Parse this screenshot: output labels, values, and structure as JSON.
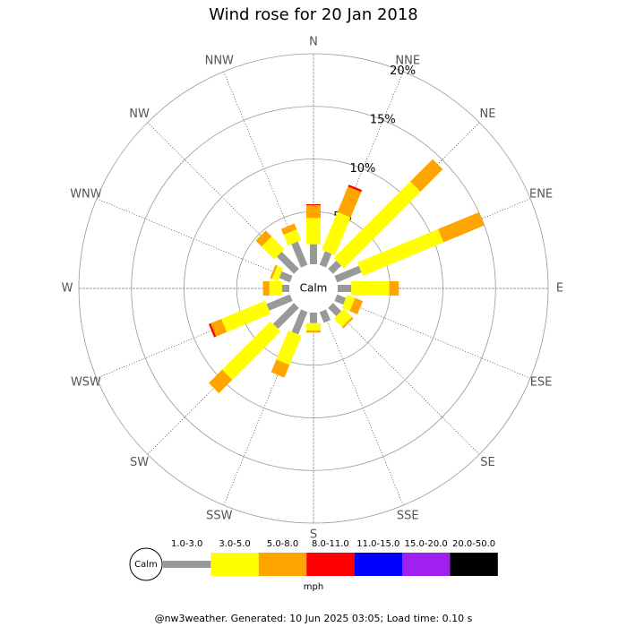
{
  "chart_data": {
    "type": "windrose",
    "title": "Wind rose for 20 Jan 2018",
    "categories": [
      "N",
      "NNE",
      "NE",
      "ENE",
      "E",
      "ESE",
      "SE",
      "SSE",
      "S",
      "SSW",
      "SW",
      "WSW",
      "W",
      "WNW",
      "NW",
      "NNW"
    ],
    "series": [
      {
        "name": "1.0-3.0",
        "color": "#999999",
        "values": [
          1.9,
          1.4,
          1.1,
          2.5,
          1.3,
          0.9,
          1.1,
          1.1,
          1.0,
          2.3,
          2.8,
          2.4,
          0.7,
          1.1,
          2.3,
          2.4
        ]
      },
      {
        "name": "3.0-5.0",
        "color": "#ffff00",
        "values": [
          2.5,
          3.9,
          10.3,
          8.3,
          3.6,
          0.8,
          1.1,
          0,
          0.7,
          3.0,
          6.5,
          4.5,
          1.2,
          0.6,
          1.7,
          1.1
        ]
      },
      {
        "name": "5.0-8.0",
        "color": "#ffa500",
        "values": [
          1.2,
          2.6,
          3.0,
          4.2,
          0.9,
          0.8,
          0.2,
          0,
          0.2,
          1.3,
          1.8,
          1.1,
          0.6,
          0.2,
          0.8,
          0.6
        ]
      },
      {
        "name": "8.0-11.0",
        "color": "#ff0000",
        "values": [
          0.1,
          0.2,
          0,
          0,
          0,
          0,
          0,
          0,
          0,
          0,
          0,
          0.2,
          0,
          0,
          0,
          0
        ]
      },
      {
        "name": "11.0-15.0",
        "color": "#0000ff",
        "values": [
          0,
          0,
          0,
          0,
          0,
          0,
          0,
          0,
          0,
          0,
          0,
          0,
          0,
          0,
          0,
          0
        ]
      },
      {
        "name": "15.0-20.0",
        "color": "#a020f0",
        "values": [
          0,
          0,
          0,
          0,
          0,
          0,
          0,
          0,
          0,
          0,
          0,
          0,
          0,
          0,
          0,
          0
        ]
      },
      {
        "name": "20.0-50.0",
        "color": "#000000",
        "values": [
          0,
          0,
          0,
          0,
          0,
          0,
          0,
          0,
          0,
          0,
          0,
          0,
          0,
          0,
          0,
          0
        ]
      }
    ],
    "rlim": [
      0,
      20
    ],
    "rticks": [
      {
        "value": 5,
        "label": "5%"
      },
      {
        "value": 10,
        "label": "10%"
      },
      {
        "value": 15,
        "label": "15%"
      },
      {
        "value": 20,
        "label": "20%"
      }
    ],
    "calm_label": "Calm",
    "unit": "mph",
    "footer": "@nw3weather. Generated: 10 Jun 2025 03:05; Load time: 0.10 s"
  }
}
